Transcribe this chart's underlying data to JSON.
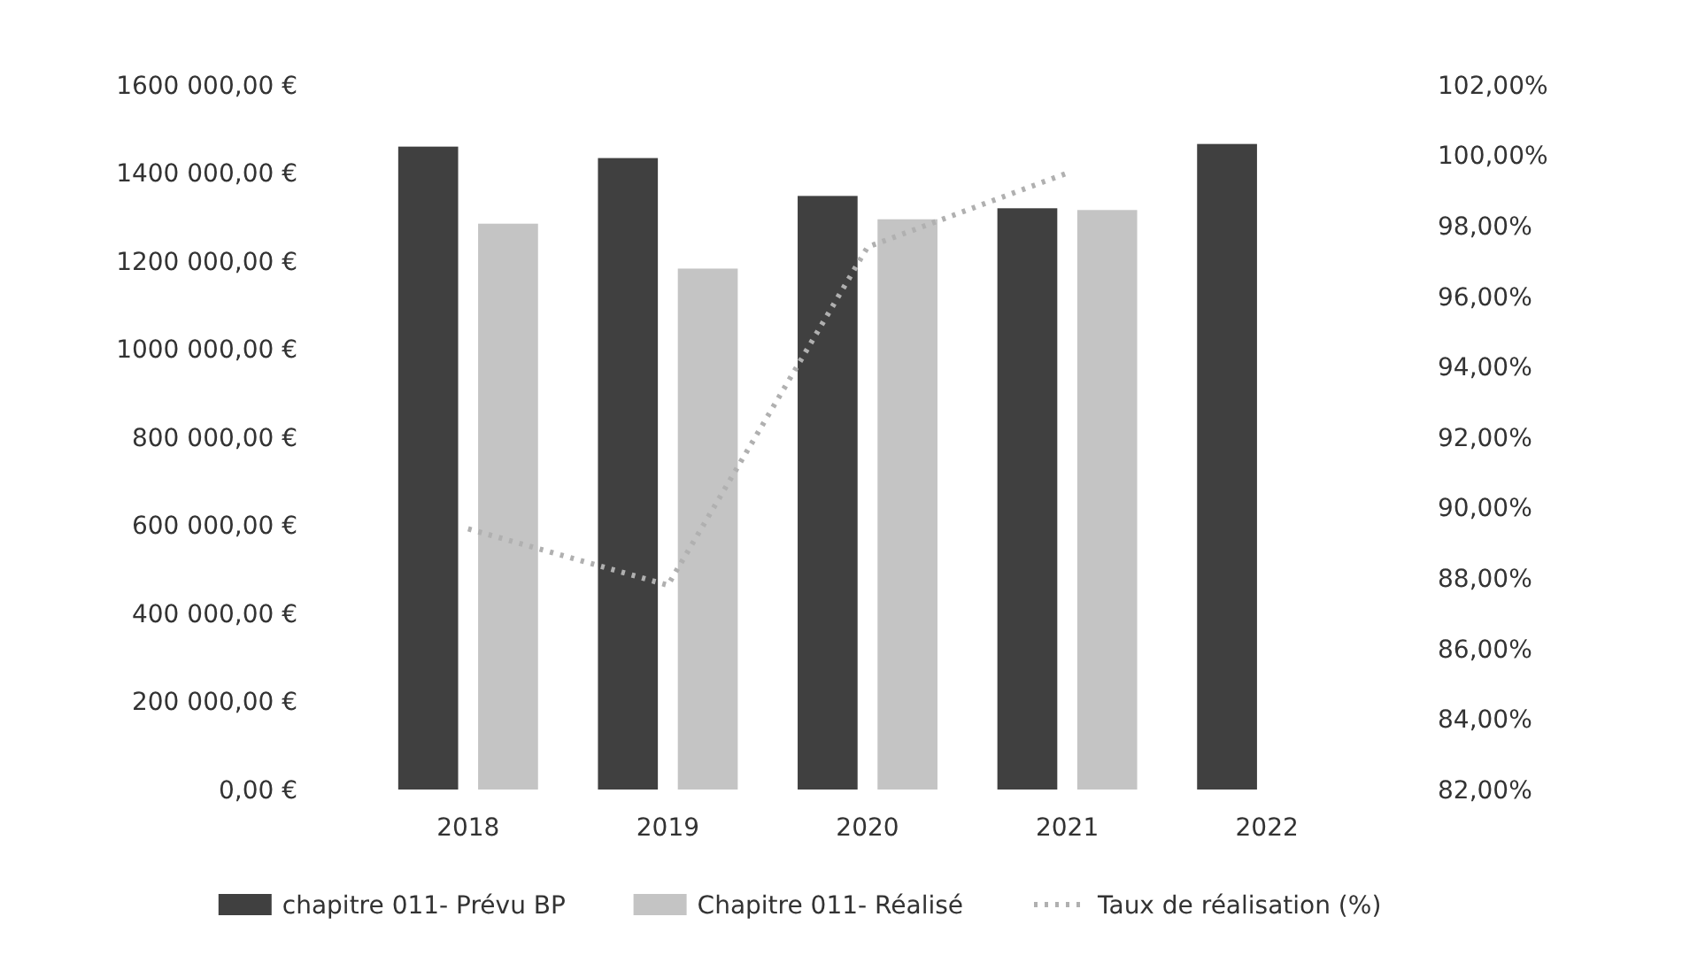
{
  "chart_data": {
    "type": "bar",
    "categories": [
      "2018",
      "2019",
      "2020",
      "2021",
      "2022"
    ],
    "series": [
      {
        "name": "chapitre 011- Prévu BP",
        "color": "#404040",
        "values": [
          1460000,
          1434000,
          1348000,
          1320000,
          1466000
        ]
      },
      {
        "name": "Chapitre 011- Réalisé",
        "color": "#c4c4c4",
        "values": [
          1285000,
          1183000,
          1295000,
          1316000,
          null
        ]
      },
      {
        "name": "Taux de réalisation (%)",
        "type": "line",
        "axis": "y2",
        "color": "#b0b0b0",
        "line_style": "dotted",
        "values": [
          89.4,
          87.8,
          97.4,
          99.5,
          null
        ]
      }
    ],
    "ylim": [
      0,
      1600000
    ],
    "yticks": [
      {
        "value": 0,
        "label": "0,00 €"
      },
      {
        "value": 200000,
        "label": "200 000,00 €"
      },
      {
        "value": 400000,
        "label": "400 000,00 €"
      },
      {
        "value": 600000,
        "label": "600 000,00 €"
      },
      {
        "value": 800000,
        "label": "800 000,00 €"
      },
      {
        "value": 1000000,
        "label": "1000 000,00 €"
      },
      {
        "value": 1200000,
        "label": "1200 000,00 €"
      },
      {
        "value": 1400000,
        "label": "1400 000,00 €"
      },
      {
        "value": 1600000,
        "label": "1600 000,00 €"
      }
    ],
    "y2lim": [
      82,
      102
    ],
    "y2ticks": [
      {
        "value": 82,
        "label": "82,00%"
      },
      {
        "value": 84,
        "label": "84,00%"
      },
      {
        "value": 86,
        "label": "86,00%"
      },
      {
        "value": 88,
        "label": "88,00%"
      },
      {
        "value": 90,
        "label": "90,00%"
      },
      {
        "value": 92,
        "label": "92,00%"
      },
      {
        "value": 94,
        "label": "94,00%"
      },
      {
        "value": 96,
        "label": "96,00%"
      },
      {
        "value": 98,
        "label": "98,00%"
      },
      {
        "value": 100,
        "label": "100,00%"
      },
      {
        "value": 102,
        "label": "102,00%"
      }
    ],
    "legend": "bottom"
  }
}
